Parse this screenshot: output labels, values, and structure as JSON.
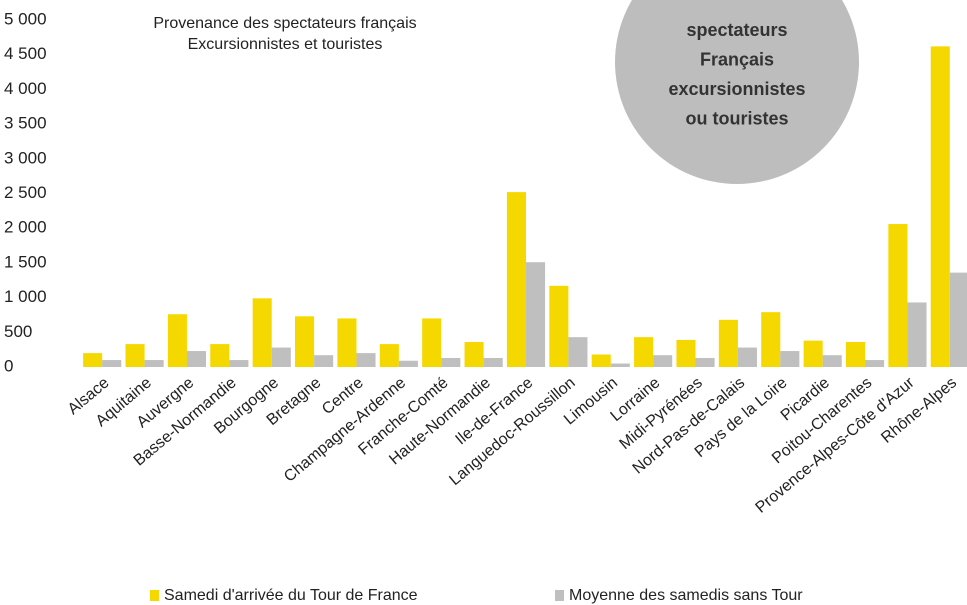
{
  "chart_data": {
    "type": "bar",
    "title": [
      "Provenance des spectateurs français",
      "Excursionnistes et touristes"
    ],
    "annotation": [
      "spectateurs",
      "Français",
      "excursionnistes",
      "ou touristes"
    ],
    "categories": [
      "Alsace",
      "Aquitaine",
      "Auvergne",
      "Basse-Normandie",
      "Bourgogne",
      "Bretagne",
      "Centre",
      "Champagne-Ardenne",
      "Franche-Comté",
      "Haute-Normandie",
      "Ile-de-France",
      "Languedoc-Roussillon",
      "Limousin",
      "Lorraine",
      "Midi-Pyrénées",
      "Nord-Pas-de-Calais",
      "Pays de la Loire",
      "Picardie",
      "Poitou-Charentes",
      "Provence-Alpes-Côte d'Azur",
      "Rhône-Alpes"
    ],
    "series": [
      {
        "name": "Samedi d'arrivée du Tour de France",
        "color": "#f5d800",
        "values": [
          200,
          330,
          760,
          330,
          990,
          730,
          700,
          330,
          700,
          360,
          2520,
          1170,
          180,
          430,
          390,
          680,
          790,
          380,
          360,
          2060,
          4620
        ]
      },
      {
        "name": "Moyenne des samedis sans Tour",
        "color": "#bfbfbf",
        "values": [
          100,
          100,
          230,
          100,
          280,
          170,
          200,
          90,
          130,
          130,
          1510,
          430,
          50,
          170,
          130,
          280,
          230,
          170,
          100,
          930,
          1360
        ]
      }
    ],
    "ylim": [
      0,
      5000
    ],
    "yticks": [
      0,
      500,
      {
        "value": 1000,
        "label": "1 000"
      },
      {
        "value": 1500,
        "label": "1 500"
      },
      {
        "value": 2000,
        "label": "2 000"
      },
      {
        "value": 2500,
        "label": "2 500"
      },
      {
        "value": 3000,
        "label": "3 000"
      },
      {
        "value": 3500,
        "label": "3 500"
      },
      {
        "value": 4000,
        "label": "4 000"
      },
      {
        "value": 4500,
        "label": "4 500"
      },
      {
        "value": 5000,
        "label": "5 000"
      }
    ],
    "grid": false
  }
}
